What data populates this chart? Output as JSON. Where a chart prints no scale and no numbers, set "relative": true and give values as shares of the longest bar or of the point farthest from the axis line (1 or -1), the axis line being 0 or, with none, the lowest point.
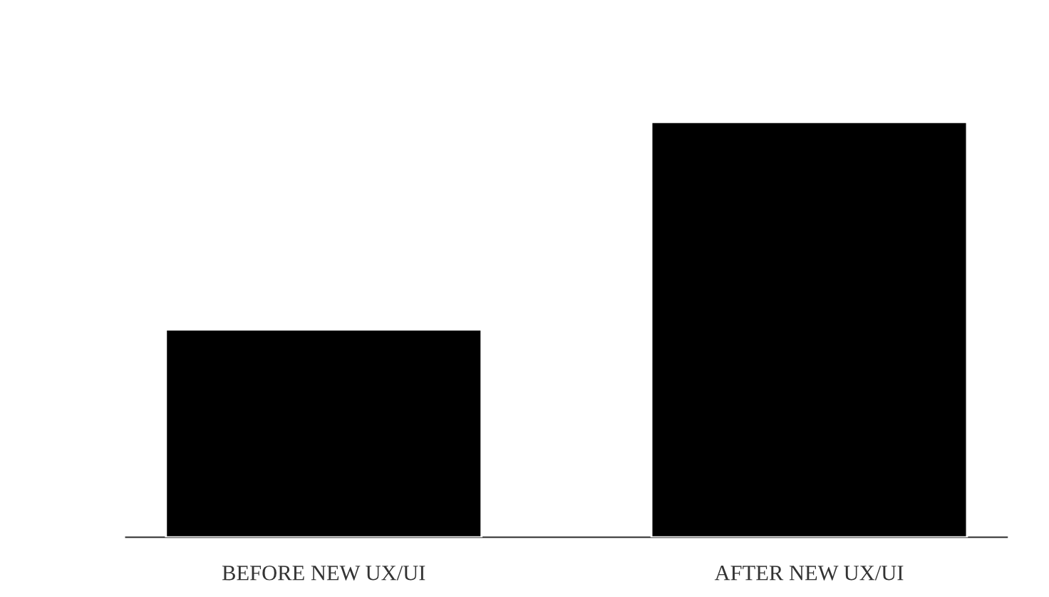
{
  "chart_data": {
    "type": "bar",
    "relative": true,
    "categories": [
      "BEFORE NEW UX/UI",
      "AFTER NEW UX/UI"
    ],
    "values": [
      0.5,
      1
    ],
    "color": "#000000"
  }
}
